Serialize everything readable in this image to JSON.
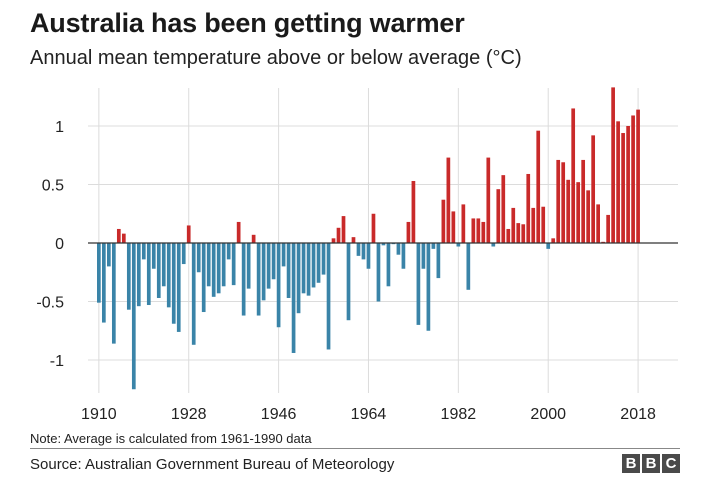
{
  "header": {
    "title": "Australia has been getting warmer",
    "subtitle": "Annual mean temperature above or below average (°C)"
  },
  "footer": {
    "note": "Note: Average is calculated from 1961-1990 data",
    "source": "Source: Australian Government Bureau of Meteorology",
    "logo": [
      "B",
      "B",
      "C"
    ]
  },
  "colors": {
    "positive": "#c92a2a",
    "negative": "#3a84a8",
    "grid": "#dcdcdc",
    "zero_line": "#333333"
  },
  "chart_data": {
    "type": "bar",
    "title": "Australia has been getting warmer",
    "subtitle": "Annual mean temperature above or below average (°C)",
    "xlabel": "",
    "ylabel": "",
    "x": [
      1910,
      1911,
      1912,
      1913,
      1914,
      1915,
      1916,
      1917,
      1918,
      1919,
      1920,
      1921,
      1922,
      1923,
      1924,
      1925,
      1926,
      1927,
      1928,
      1929,
      1930,
      1931,
      1932,
      1933,
      1934,
      1935,
      1936,
      1937,
      1938,
      1939,
      1940,
      1941,
      1942,
      1943,
      1944,
      1945,
      1946,
      1947,
      1948,
      1949,
      1950,
      1951,
      1952,
      1953,
      1954,
      1955,
      1956,
      1957,
      1958,
      1959,
      1960,
      1961,
      1962,
      1963,
      1964,
      1965,
      1966,
      1967,
      1968,
      1969,
      1970,
      1971,
      1972,
      1973,
      1974,
      1975,
      1976,
      1977,
      1978,
      1979,
      1980,
      1981,
      1982,
      1983,
      1984,
      1985,
      1986,
      1987,
      1988,
      1989,
      1990,
      1991,
      1992,
      1993,
      1994,
      1995,
      1996,
      1997,
      1998,
      1999,
      2000,
      2001,
      2002,
      2003,
      2004,
      2005,
      2006,
      2007,
      2008,
      2009,
      2010,
      2011,
      2012,
      2013,
      2014,
      2015,
      2016,
      2017,
      2018
    ],
    "values": [
      -0.51,
      -0.68,
      -0.2,
      -0.86,
      0.12,
      0.08,
      -0.57,
      -1.25,
      -0.54,
      -0.14,
      -0.53,
      -0.22,
      -0.47,
      -0.37,
      -0.55,
      -0.69,
      -0.76,
      -0.18,
      0.15,
      -0.87,
      -0.25,
      -0.59,
      -0.37,
      -0.46,
      -0.43,
      -0.37,
      -0.14,
      -0.36,
      0.18,
      -0.62,
      -0.39,
      0.07,
      -0.62,
      -0.49,
      -0.39,
      -0.31,
      -0.72,
      -0.2,
      -0.47,
      -0.94,
      -0.6,
      -0.43,
      -0.45,
      -0.38,
      -0.34,
      -0.27,
      -0.91,
      0.04,
      0.13,
      0.23,
      -0.66,
      0.05,
      -0.11,
      -0.14,
      -0.22,
      0.25,
      -0.5,
      -0.02,
      -0.37,
      -0.01,
      -0.1,
      -0.22,
      0.18,
      0.53,
      -0.7,
      -0.22,
      -0.75,
      -0.05,
      -0.3,
      0.37,
      0.73,
      0.27,
      -0.03,
      0.33,
      -0.4,
      0.21,
      0.21,
      0.18,
      0.73,
      -0.03,
      0.46,
      0.58,
      0.12,
      0.3,
      0.17,
      0.16,
      0.59,
      0.3,
      0.96,
      0.31,
      -0.05,
      0.04,
      0.71,
      0.69,
      0.54,
      1.15,
      0.52,
      0.71,
      0.45,
      0.92,
      0.33,
      0.01,
      0.24,
      1.33,
      1.04,
      0.94,
      1.0,
      1.09,
      1.14
    ],
    "ylim": [
      -1.3,
      1.35
    ],
    "y_ticks": [
      -1,
      -0.5,
      0,
      0.5,
      1
    ],
    "y_tick_labels": [
      "-1",
      "-0.5",
      "0",
      "0.5",
      "1"
    ],
    "x_ticks": [
      1910,
      1928,
      1946,
      1964,
      1982,
      2000,
      2018
    ],
    "x_tick_labels": [
      "1910",
      "1928",
      "1946",
      "1964",
      "1982",
      "2000",
      "2018"
    ],
    "grid": true,
    "legend": "none"
  }
}
